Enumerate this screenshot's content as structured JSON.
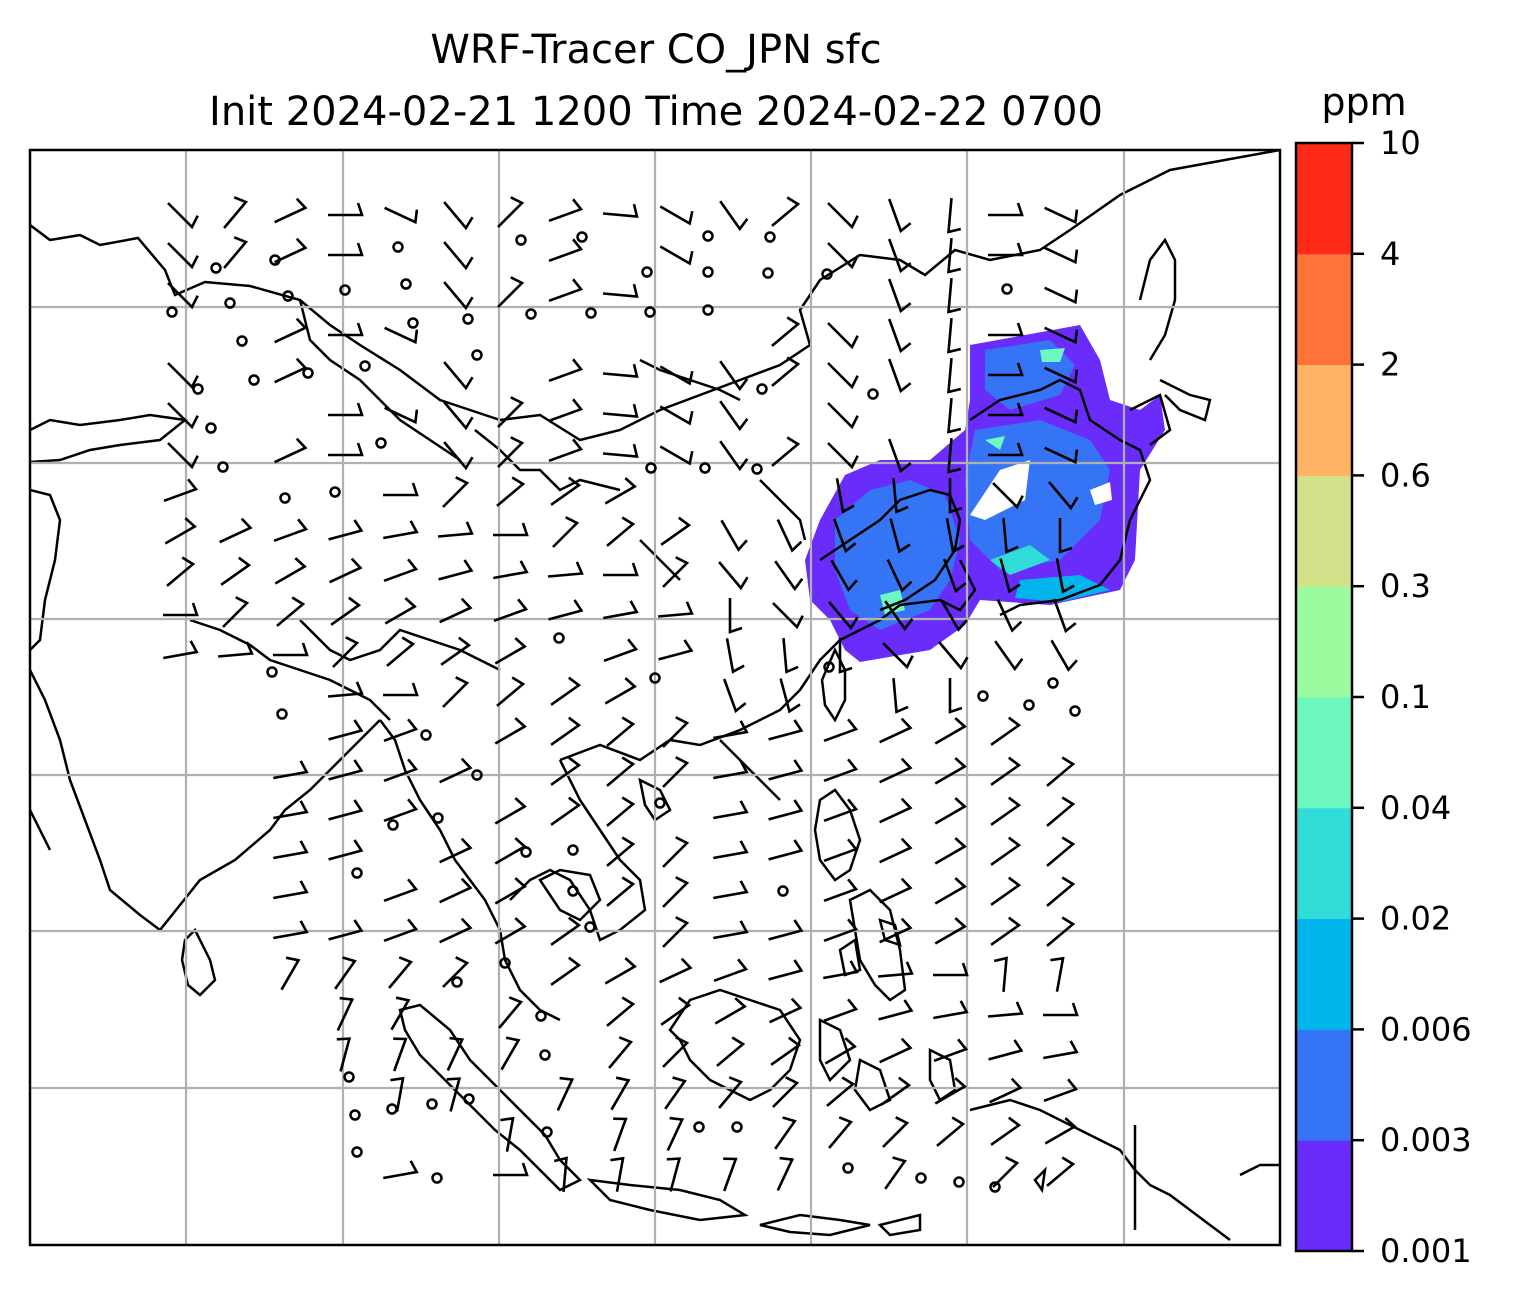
{
  "title": {
    "line1": "WRF-Tracer CO_JPN sfc",
    "line2": "Init 2024-02-21 1200 Time 2024-02-22 0700"
  },
  "colorbar": {
    "unit": "ppm",
    "levels": [
      "0.001",
      "0.003",
      "0.006",
      "0.02",
      "0.04",
      "0.1",
      "0.3",
      "0.6",
      "2",
      "4",
      "10"
    ],
    "colors": [
      "#6a2cfb",
      "#3574f5",
      "#00b4ec",
      "#2fdcd8",
      "#6cf8c0",
      "#9cfb9e",
      "#d2e28a",
      "#fdb363",
      "#fe7338",
      "#ff2b18"
    ]
  },
  "map": {
    "plume_colors": [
      "#6a2cfb",
      "#3574f5",
      "#00b4ec",
      "#2fdcd8",
      "#6cf8c0"
    ],
    "grid_color": "#b0b0b0",
    "wind_barbs": "wind-barbs",
    "calm_marker": "circle-icon"
  }
}
